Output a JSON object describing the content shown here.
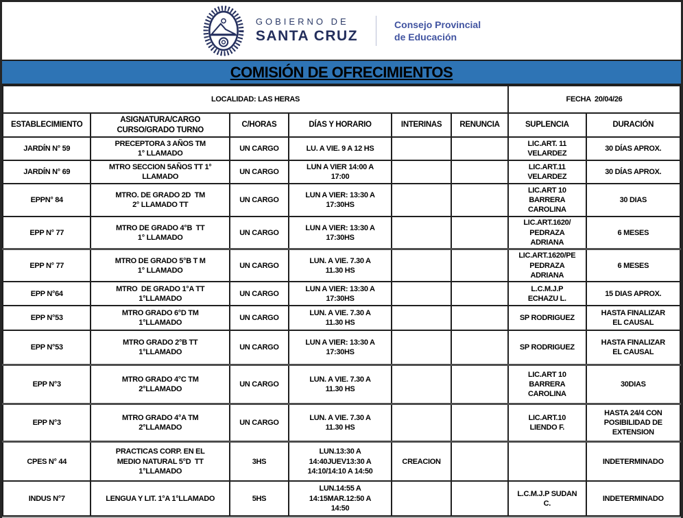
{
  "header": {
    "government_line1": "GOBIERNO DE",
    "government_line2": "SANTA CRUZ",
    "council": "Consejo Provincial\nde Educación"
  },
  "title": "COMISIÓN DE OFRECIMIENTOS",
  "subheader": {
    "localidad": "LOCALIDAD: LAS HERAS",
    "fecha": "FECHA  20/04/26"
  },
  "colors": {
    "accent_blue": "#2E74B5",
    "logo_navy": "#26315F",
    "council_blue": "#4053A0",
    "border_dark": "#1F1F1F"
  },
  "icons": {
    "coat_of_arms": "santa-cruz-coat-of-arms-icon"
  },
  "table": {
    "columns": [
      "ESTABLECIMIENTO",
      "ASIGNATURA/CARGO\nCURSO/GRADO TURNO",
      "C/HORAS",
      "DÍAS Y HORARIO",
      "INTERINAS",
      "RENUNCIA",
      "SUPLENCIA",
      "DURACIÓN"
    ],
    "rows": [
      [
        "JARDÍN N° 59",
        "PRECEPTORA 3 AÑOS TM\n1° LLAMADO",
        "UN CARGO",
        "LU. A VIE. 9 A 12 HS",
        "",
        "",
        "LIC.ART. 11\nVELARDEZ",
        "30 DÍAS APROX."
      ],
      [
        "JARDÍN N° 69",
        "MTRO SECCION 5AÑOS TT 1°\nLLAMADO",
        "UN CARGO",
        "LUN A VIER 14:00 A\n17:00",
        "",
        "",
        "LIC.ART.11\nVELARDEZ",
        "30 DÍAS APROX."
      ],
      [
        "EPPN° 84",
        "MTRO. DE GRADO 2D  TM\n2° LLAMADO TT",
        "UN CARGO",
        "LUN A VIER: 13:30 A\n17:30HS",
        "",
        "",
        "LIC.ART 10\nBARRERA\nCAROLINA",
        "30 DIAS"
      ],
      [
        "EPP N° 77",
        "MTRO DE GRADO 4°B  TT\n1° LLAMADO",
        "UN CARGO",
        "LUN A VIER: 13:30 A\n17:30HS",
        "",
        "",
        "LIC.ART.1620/\nPEDRAZA\nADRIANA",
        "6 MESES"
      ],
      [
        "EPP N° 77",
        "MTRO DE GRADO 5°B T M\n1° LLAMADO",
        "UN CARGO",
        "LUN. A VIE. 7.30 A\n11.30 HS",
        "",
        "",
        "LIC.ART.1620/PE\nPEDRAZA\nADRIANA",
        "6 MESES"
      ],
      [
        "EPP N°64",
        "MTRO  DE GRADO 1°A TT\n1°LLAMADO",
        "UN CARGO",
        "LUN A VIER: 13:30 A\n17:30HS",
        "",
        "",
        "L.C.M.J.P\nECHAZU L.",
        "15 DIAS APROX."
      ],
      [
        "EPP N°53",
        "MTRO GRADO 6°D TM\n1°LLAMADO",
        "UN CARGO",
        "LUN. A VIE. 7.30 A\n11.30 HS",
        "",
        "",
        "SP RODRIGUEZ",
        "HASTA FINALIZAR\nEL CAUSAL"
      ],
      [
        "EPP N°53",
        "MTRO GRADO 2°B TT\n1°LLAMADO",
        "UN CARGO",
        "LUN A VIER: 13:30 A\n17:30HS",
        "",
        "",
        "SP RODRIGUEZ",
        "HASTA FINALIZAR\nEL CAUSAL"
      ],
      [
        "EPP N°3",
        "MTRO GRADO 4°C TM\n2°LLAMADO",
        "UN CARGO",
        "LUN. A VIE. 7.30 A\n11.30 HS",
        "",
        "",
        "LIC.ART 10\nBARRERA\nCAROLINA",
        "30DIAS"
      ],
      [
        "EPP N°3",
        "MTRO GRADO 4°A TM\n2°LLAMADO",
        "UN CARGO",
        "LUN. A VIE. 7.30 A\n11.30 HS",
        "",
        "",
        "LIC.ART.10\nLIENDO F.",
        "HASTA 24/4 CON\nPOSIBILIDAD DE\nEXTENSION"
      ],
      [
        "CPES N° 44",
        "PRACTICAS CORP. EN EL\nMEDIO NATURAL 5°D  TT\n1°LLAMADO",
        "3HS",
        "LUN.13:30 A\n14:40JUEV13:30 A\n14:10/14:10 A 14:50",
        "CREACION",
        "",
        "",
        "INDETERMINADO"
      ],
      [
        "INDUS N°7",
        "LENGUA Y LIT. 1°A 1°LLAMADO",
        "5HS",
        "LUN.14:55 A\n14:15MAR.12:50 A\n14:50",
        "",
        "",
        "L.C.M.J.P SUDAN\nC.",
        "INDETERMINADO"
      ]
    ]
  }
}
